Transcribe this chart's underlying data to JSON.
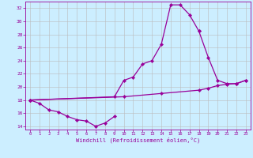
{
  "xlabel": "Windchill (Refroidissement éolien,°C)",
  "xlim": [
    -0.5,
    23.5
  ],
  "ylim": [
    13.5,
    33.0
  ],
  "yticks": [
    14,
    16,
    18,
    20,
    22,
    24,
    26,
    28,
    30,
    32
  ],
  "xticks": [
    0,
    1,
    2,
    3,
    4,
    5,
    6,
    7,
    8,
    9,
    10,
    11,
    12,
    13,
    14,
    15,
    16,
    17,
    18,
    19,
    20,
    21,
    22,
    23
  ],
  "bg_color": "#cceeff",
  "line_color": "#990099",
  "grid_color": "#bbbbbb",
  "line1_x": [
    0,
    1,
    2,
    3,
    4,
    5,
    6,
    7,
    8,
    9
  ],
  "line1_y": [
    18.0,
    17.5,
    16.5,
    16.2,
    15.5,
    15.0,
    14.8,
    14.0,
    14.5,
    15.5
  ],
  "line2_x": [
    0,
    9,
    10,
    11,
    12,
    13,
    14,
    15,
    16,
    17,
    18
  ],
  "line2_y": [
    18.0,
    18.5,
    21.0,
    21.5,
    23.5,
    24.0,
    26.5,
    32.5,
    32.5,
    31.0,
    28.5
  ],
  "line3_x": [
    18,
    19,
    20,
    21,
    22,
    23
  ],
  "line3_y": [
    28.5,
    24.5,
    21.0,
    20.5,
    20.5,
    21.0
  ],
  "line4_x": [
    0,
    10,
    14,
    18,
    19,
    20,
    21,
    22,
    23
  ],
  "line4_y": [
    18.0,
    18.5,
    19.0,
    19.5,
    19.8,
    20.2,
    20.4,
    20.5,
    21.0
  ]
}
